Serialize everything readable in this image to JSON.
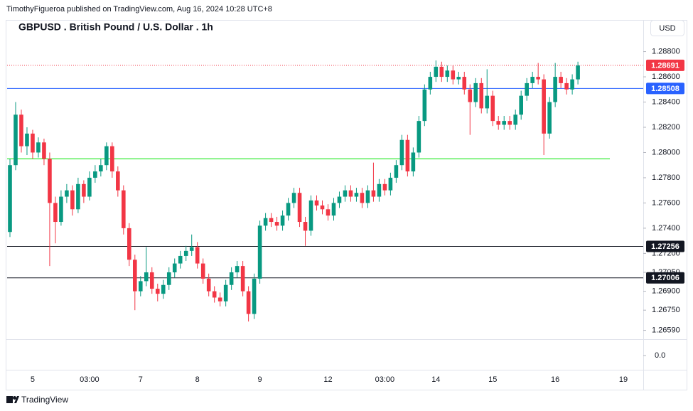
{
  "header": {
    "byline": "TimothyFigueroa published on TradingView.com, Aug 16, 2024 10:28 UTC+8"
  },
  "chart_data": {
    "type": "candlestick",
    "title": "GBPUSD . British Pound / U.S. Dollar . 1h",
    "currency": "USD",
    "up_color": "#089981",
    "down_color": "#f23645",
    "ylim": [
      1.2652,
      1.2904
    ],
    "yticks": [
      {
        "value": 1.288,
        "label": "1.28800"
      },
      {
        "value": 1.286,
        "label": "1.28600"
      },
      {
        "value": 1.284,
        "label": "1.28400"
      },
      {
        "value": 1.282,
        "label": "1.28200"
      },
      {
        "value": 1.28,
        "label": "1.28000"
      },
      {
        "value": 1.278,
        "label": "1.27800"
      },
      {
        "value": 1.276,
        "label": "1.27600"
      },
      {
        "value": 1.274,
        "label": "1.27400"
      },
      {
        "value": 1.272,
        "label": "1.27200"
      },
      {
        "value": 1.2705,
        "label": "1.27050"
      },
      {
        "value": 1.269,
        "label": "1.26900"
      },
      {
        "value": 1.2675,
        "label": "1.26750"
      },
      {
        "value": 1.2659,
        "label": "1.26590"
      }
    ],
    "price_lines": [
      {
        "value": 1.28691,
        "color": "#f23645",
        "style": "dotted",
        "label": true
      },
      {
        "value": 1.28508,
        "color": "#2962ff",
        "style": "solid",
        "label": true
      },
      {
        "value": 1.2795,
        "color": "#00e600",
        "style": "solid",
        "label": false
      },
      {
        "value": 1.27256,
        "color": "#131722",
        "style": "solid",
        "label": true
      },
      {
        "value": 1.27006,
        "color": "#131722",
        "style": "solid",
        "label": true
      }
    ],
    "lower_pane": {
      "yticks": [
        {
          "value": 0,
          "label": "0.0"
        }
      ]
    },
    "categories": [
      null,
      null,
      null,
      null,
      "5",
      null,
      null,
      null,
      null,
      null,
      null,
      null,
      null,
      null,
      "03:00",
      null,
      null,
      null,
      null,
      null,
      null,
      null,
      null,
      "7",
      null,
      null,
      null,
      null,
      null,
      null,
      null,
      null,
      null,
      "8",
      null,
      null,
      null,
      null,
      null,
      null,
      null,
      null,
      null,
      null,
      "9",
      null,
      null,
      null,
      null,
      null,
      null,
      null,
      null,
      null,
      null,
      null,
      "12",
      null,
      null,
      null,
      null,
      null,
      null,
      null,
      null,
      null,
      "03:00",
      null,
      null,
      null,
      null,
      null,
      null,
      null,
      null,
      "14",
      null,
      null,
      null,
      null,
      null,
      null,
      null,
      null,
      null,
      "15",
      null,
      null,
      null,
      null,
      null,
      null,
      null,
      null,
      null,
      null,
      "16",
      null,
      null,
      null,
      null,
      null,
      null,
      null,
      null,
      null,
      null,
      null,
      "19",
      null,
      null,
      null
    ],
    "candles": [
      [
        1.2737,
        1.2795,
        1.2733,
        1.279
      ],
      [
        1.279,
        1.284,
        1.2786,
        1.283
      ],
      [
        1.283,
        1.2834,
        1.28,
        1.2805
      ],
      [
        1.2805,
        1.282,
        1.2798,
        1.2815
      ],
      [
        1.2815,
        1.2818,
        1.2795,
        1.28
      ],
      [
        1.28,
        1.2812,
        1.2796,
        1.2808
      ],
      [
        1.2808,
        1.2811,
        1.279,
        1.2795
      ],
      [
        1.2795,
        1.28,
        1.271,
        1.276
      ],
      [
        1.276,
        1.2765,
        1.2728,
        1.2745
      ],
      [
        1.2745,
        1.277,
        1.2742,
        1.2765
      ],
      [
        1.2765,
        1.2775,
        1.276,
        1.277
      ],
      [
        1.277,
        1.2774,
        1.275,
        1.2755
      ],
      [
        1.2755,
        1.278,
        1.2752,
        1.2775
      ],
      [
        1.2775,
        1.2778,
        1.276,
        1.2765
      ],
      [
        1.2765,
        1.2785,
        1.2762,
        1.278
      ],
      [
        1.278,
        1.279,
        1.2776,
        1.2785
      ],
      [
        1.2785,
        1.2795,
        1.2781,
        1.279
      ],
      [
        1.279,
        1.2808,
        1.2786,
        1.2805
      ],
      [
        1.2805,
        1.2808,
        1.278,
        1.2785
      ],
      [
        1.2785,
        1.2789,
        1.2765,
        1.277
      ],
      [
        1.277,
        1.2774,
        1.2735,
        1.274
      ],
      [
        1.274,
        1.2744,
        1.271,
        1.2715
      ],
      [
        1.2715,
        1.2719,
        1.2675,
        1.269
      ],
      [
        1.269,
        1.2702,
        1.2686,
        1.2698
      ],
      [
        1.2698,
        1.2725,
        1.2694,
        1.2705
      ],
      [
        1.2705,
        1.2709,
        1.2688,
        1.2692
      ],
      [
        1.2692,
        1.2696,
        1.2682,
        1.2688
      ],
      [
        1.2688,
        1.2699,
        1.2684,
        1.2695
      ],
      [
        1.2695,
        1.2709,
        1.2691,
        1.2705
      ],
      [
        1.2705,
        1.2716,
        1.2701,
        1.2712
      ],
      [
        1.2712,
        1.2722,
        1.2708,
        1.2718
      ],
      [
        1.2718,
        1.2726,
        1.2714,
        1.2722
      ],
      [
        1.2722,
        1.2735,
        1.2718,
        1.2725
      ],
      [
        1.2725,
        1.2729,
        1.2708,
        1.2712
      ],
      [
        1.2712,
        1.2716,
        1.2696,
        1.27
      ],
      [
        1.27,
        1.2704,
        1.2686,
        1.269
      ],
      [
        1.269,
        1.2694,
        1.2681,
        1.2685
      ],
      [
        1.2685,
        1.2689,
        1.2678,
        1.2682
      ],
      [
        1.2682,
        1.2699,
        1.2678,
        1.2695
      ],
      [
        1.2695,
        1.2709,
        1.2691,
        1.2705
      ],
      [
        1.2705,
        1.2714,
        1.2701,
        1.271
      ],
      [
        1.271,
        1.2714,
        1.2686,
        1.269
      ],
      [
        1.269,
        1.2694,
        1.2666,
        1.2672
      ],
      [
        1.2672,
        1.2704,
        1.2668,
        1.27
      ],
      [
        1.27,
        1.2746,
        1.2696,
        1.2742
      ],
      [
        1.2742,
        1.2752,
        1.2738,
        1.2748
      ],
      [
        1.2748,
        1.2752,
        1.2741,
        1.2745
      ],
      [
        1.2745,
        1.2749,
        1.2738,
        1.2742
      ],
      [
        1.2742,
        1.2754,
        1.2738,
        1.275
      ],
      [
        1.275,
        1.2764,
        1.2746,
        1.276
      ],
      [
        1.276,
        1.2772,
        1.2756,
        1.2768
      ],
      [
        1.2768,
        1.2772,
        1.2741,
        1.2745
      ],
      [
        1.2745,
        1.2749,
        1.2726,
        1.2738
      ],
      [
        1.2738,
        1.2766,
        1.2734,
        1.2762
      ],
      [
        1.2762,
        1.2766,
        1.2754,
        1.2758
      ],
      [
        1.2758,
        1.2762,
        1.2751,
        1.2755
      ],
      [
        1.2755,
        1.2759,
        1.2746,
        1.275
      ],
      [
        1.275,
        1.2764,
        1.2746,
        1.276
      ],
      [
        1.276,
        1.2769,
        1.2756,
        1.2765
      ],
      [
        1.2765,
        1.2774,
        1.2761,
        1.277
      ],
      [
        1.277,
        1.2774,
        1.2761,
        1.2765
      ],
      [
        1.2765,
        1.2772,
        1.2761,
        1.2768
      ],
      [
        1.2768,
        1.2772,
        1.2756,
        1.276
      ],
      [
        1.276,
        1.2774,
        1.2756,
        1.277
      ],
      [
        1.277,
        1.2792,
        1.2761,
        1.2765
      ],
      [
        1.2765,
        1.2779,
        1.2761,
        1.2775
      ],
      [
        1.2775,
        1.2779,
        1.2766,
        1.277
      ],
      [
        1.277,
        1.2784,
        1.2766,
        1.278
      ],
      [
        1.278,
        1.2794,
        1.2776,
        1.279
      ],
      [
        1.279,
        1.2814,
        1.2786,
        1.281
      ],
      [
        1.281,
        1.2814,
        1.2781,
        1.2785
      ],
      [
        1.2785,
        1.2804,
        1.2781,
        1.28
      ],
      [
        1.28,
        1.2829,
        1.2796,
        1.2825
      ],
      [
        1.2825,
        1.2854,
        1.2821,
        1.285
      ],
      [
        1.285,
        1.2864,
        1.2846,
        1.286
      ],
      [
        1.286,
        1.2873,
        1.2856,
        1.2868
      ],
      [
        1.2868,
        1.2872,
        1.2856,
        1.286
      ],
      [
        1.286,
        1.2869,
        1.2856,
        1.2865
      ],
      [
        1.2865,
        1.2869,
        1.2854,
        1.2858
      ],
      [
        1.2858,
        1.2864,
        1.2854,
        1.286
      ],
      [
        1.286,
        1.2864,
        1.2846,
        1.285
      ],
      [
        1.285,
        1.2854,
        1.2814,
        1.284
      ],
      [
        1.284,
        1.2859,
        1.2836,
        1.2855
      ],
      [
        1.2855,
        1.2859,
        1.2831,
        1.2835
      ],
      [
        1.2835,
        1.2866,
        1.2831,
        1.2845
      ],
      [
        1.2845,
        1.2849,
        1.2821,
        1.2825
      ],
      [
        1.2825,
        1.2829,
        1.2818,
        1.2822
      ],
      [
        1.2822,
        1.2829,
        1.2818,
        1.2825
      ],
      [
        1.2825,
        1.2829,
        1.2818,
        1.2822
      ],
      [
        1.2822,
        1.2834,
        1.2818,
        1.283
      ],
      [
        1.283,
        1.2849,
        1.2826,
        1.2845
      ],
      [
        1.2845,
        1.2859,
        1.2841,
        1.2855
      ],
      [
        1.2855,
        1.2864,
        1.2851,
        1.286
      ],
      [
        1.286,
        1.2871,
        1.2854,
        1.2858
      ],
      [
        1.2858,
        1.2862,
        1.2798,
        1.2815
      ],
      [
        1.2815,
        1.2844,
        1.2811,
        1.284
      ],
      [
        1.284,
        1.2871,
        1.2836,
        1.286
      ],
      [
        1.286,
        1.2864,
        1.2851,
        1.2855
      ],
      [
        1.2855,
        1.2859,
        1.2846,
        1.285
      ],
      [
        1.285,
        1.2862,
        1.2846,
        1.2858
      ],
      [
        1.2858,
        1.2872,
        1.2854,
        1.2869
      ],
      null,
      null,
      null,
      null,
      null,
      null,
      null,
      null,
      null,
      null,
      null
    ]
  },
  "footer": {
    "brand": "TradingView"
  }
}
